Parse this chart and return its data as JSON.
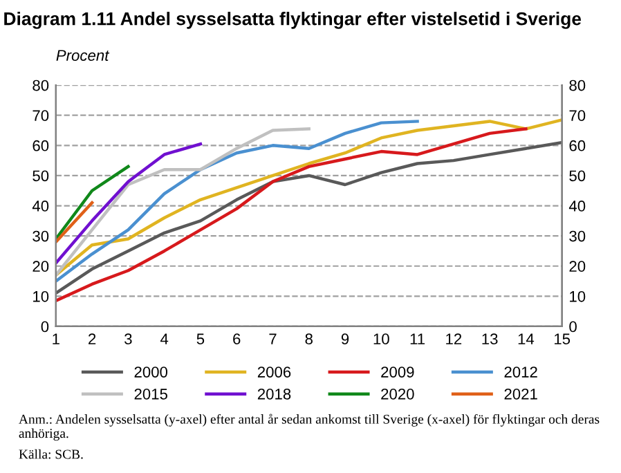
{
  "chart_data": {
    "type": "line",
    "title": "Diagram 1.11 Andel sysselsatta flyktingar efter vistelsetid i Sverige",
    "ylabel": "Procent",
    "x": [
      1,
      2,
      3,
      4,
      5,
      6,
      7,
      8,
      9,
      10,
      11,
      12,
      13,
      14,
      15
    ],
    "xlim": [
      1,
      15
    ],
    "xticks": [
      1,
      2,
      3,
      4,
      5,
      6,
      7,
      8,
      9,
      10,
      11,
      12,
      13,
      14,
      15
    ],
    "ylim": [
      0,
      80
    ],
    "yticks": [
      0,
      10,
      20,
      30,
      40,
      50,
      60,
      70,
      80
    ],
    "y2lim": [
      0,
      80
    ],
    "y2ticks": [
      0,
      10,
      20,
      30,
      40,
      50,
      60,
      70,
      80
    ],
    "grid": "y",
    "legend": "bottom",
    "marker": "none",
    "line_style": "solid",
    "series": [
      {
        "name": "2000",
        "color": "#595959",
        "values": [
          11,
          19,
          25,
          31,
          35,
          42,
          48,
          50,
          47,
          51,
          54,
          55,
          57,
          59,
          61
        ]
      },
      {
        "name": "2006",
        "color": "#e0b421",
        "values": [
          17,
          27,
          29,
          36,
          42,
          46,
          50,
          54,
          57.5,
          62.5,
          65,
          66.5,
          68,
          65.5,
          68.5
        ]
      },
      {
        "name": "2009",
        "color": "#d7191c",
        "values": [
          8.5,
          14,
          18.5,
          25,
          32,
          39,
          48,
          53,
          55.5,
          58,
          57,
          60.5,
          64,
          65.5,
          null
        ]
      },
      {
        "name": "2012",
        "color": "#4a90d0",
        "values": [
          15,
          24,
          32,
          44,
          52,
          57.5,
          60,
          59,
          64,
          67.5,
          68,
          null,
          null,
          null,
          null
        ]
      },
      {
        "name": "2015",
        "color": "#c0c0c0",
        "values": [
          17,
          32,
          47,
          52,
          52,
          59,
          65,
          65.5,
          null,
          null,
          null,
          null,
          null,
          null,
          null
        ]
      },
      {
        "name": "2018",
        "color": "#7010d0",
        "values": [
          21,
          35,
          48,
          57,
          60.5,
          null,
          null,
          null,
          null,
          null,
          null,
          null,
          null,
          null,
          null
        ]
      },
      {
        "name": "2020",
        "color": "#10881a",
        "values": [
          29,
          45,
          53,
          null,
          null,
          null,
          null,
          null,
          null,
          null,
          null,
          null,
          null,
          null,
          null
        ]
      },
      {
        "name": "2021",
        "color": "#e06018",
        "values": [
          28,
          41,
          null,
          null,
          null,
          null,
          null,
          null,
          null,
          null,
          null,
          null,
          null,
          null,
          null
        ]
      }
    ],
    "annotations": [
      "Anm.: Andelen sysselsatta (y-axel) efter antal år sedan ankomst till Sverige (x-axel) för flyktingar och deras anhöriga.",
      "Källa: SCB."
    ]
  }
}
